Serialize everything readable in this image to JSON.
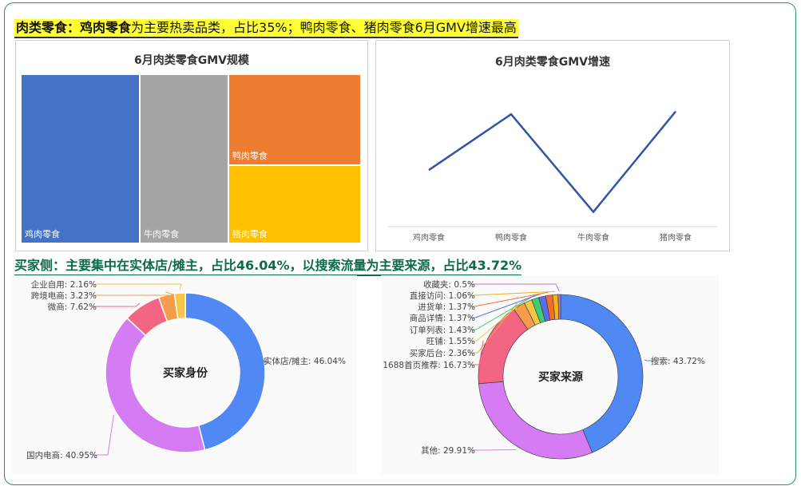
{
  "headline": {
    "bold": "肉类零食：鸡肉零食",
    "rest": "为主要热卖品类，占比35%；鸭肉零食、猪肉零食6月GMV增速最高"
  },
  "treemap": {
    "title": "6月肉类零食GMV规模",
    "type": "treemap",
    "items": [
      {
        "label": "鸡肉零食",
        "share": 35,
        "color": "#4472c4"
      },
      {
        "label": "牛肉零食",
        "share": 26,
        "color": "#a5a5a5"
      },
      {
        "label": "鸭肉零食",
        "share": 21,
        "color": "#ed7d31"
      },
      {
        "label": "猪肉零食",
        "share": 18,
        "color": "#ffc000"
      }
    ]
  },
  "chart_data": [
    {
      "type": "line",
      "title": "6月肉类零食GMV增速",
      "categories": [
        "鸡肉零食",
        "鸭肉零食",
        "牛肉零食",
        "猪肉零食"
      ],
      "values": [
        0.4,
        0.8,
        0.1,
        0.82
      ],
      "color": "#2f55a4",
      "grid": false
    },
    {
      "type": "pie",
      "title": "买家身份",
      "donut": true,
      "slices": [
        {
          "label": "实体店/摊主",
          "value": 46.04,
          "color": "#5089f4"
        },
        {
          "label": "国内电商",
          "value": 40.95,
          "color": "#d57cf5"
        },
        {
          "label": "微商",
          "value": 7.62,
          "color": "#f26683"
        },
        {
          "label": "跨境电商",
          "value": 3.23,
          "color": "#f59c4d"
        },
        {
          "label": "企业自用",
          "value": 2.16,
          "color": "#f7c545"
        }
      ]
    },
    {
      "type": "pie",
      "title": "买家来源",
      "donut": true,
      "slices": [
        {
          "label": "搜索",
          "value": 43.72,
          "color": "#5089f4"
        },
        {
          "label": "其他",
          "value": 29.91,
          "color": "#d57cf5"
        },
        {
          "label": "1688首页推荐",
          "value": 16.73,
          "color": "#f26683"
        },
        {
          "label": "买家后台",
          "value": 2.36,
          "color": "#f59c4d"
        },
        {
          "label": "旺铺",
          "value": 1.55,
          "color": "#f7c545"
        },
        {
          "label": "订单列表",
          "value": 1.43,
          "color": "#3ccf6b"
        },
        {
          "label": "商品详情",
          "value": 1.37,
          "color": "#5a6ee8"
        },
        {
          "label": "进货单",
          "value": 1.37,
          "color": "#f56b2c"
        },
        {
          "label": "直接访问",
          "value": 1.06,
          "color": "#f2b418"
        },
        {
          "label": "收藏夹",
          "value": 0.5,
          "color": "#b07ad8"
        }
      ]
    }
  ],
  "headline2": "买家侧：主要集中在实体店/摊主，占比46.04%，以搜索流量为主要来源，占比43.72%"
}
